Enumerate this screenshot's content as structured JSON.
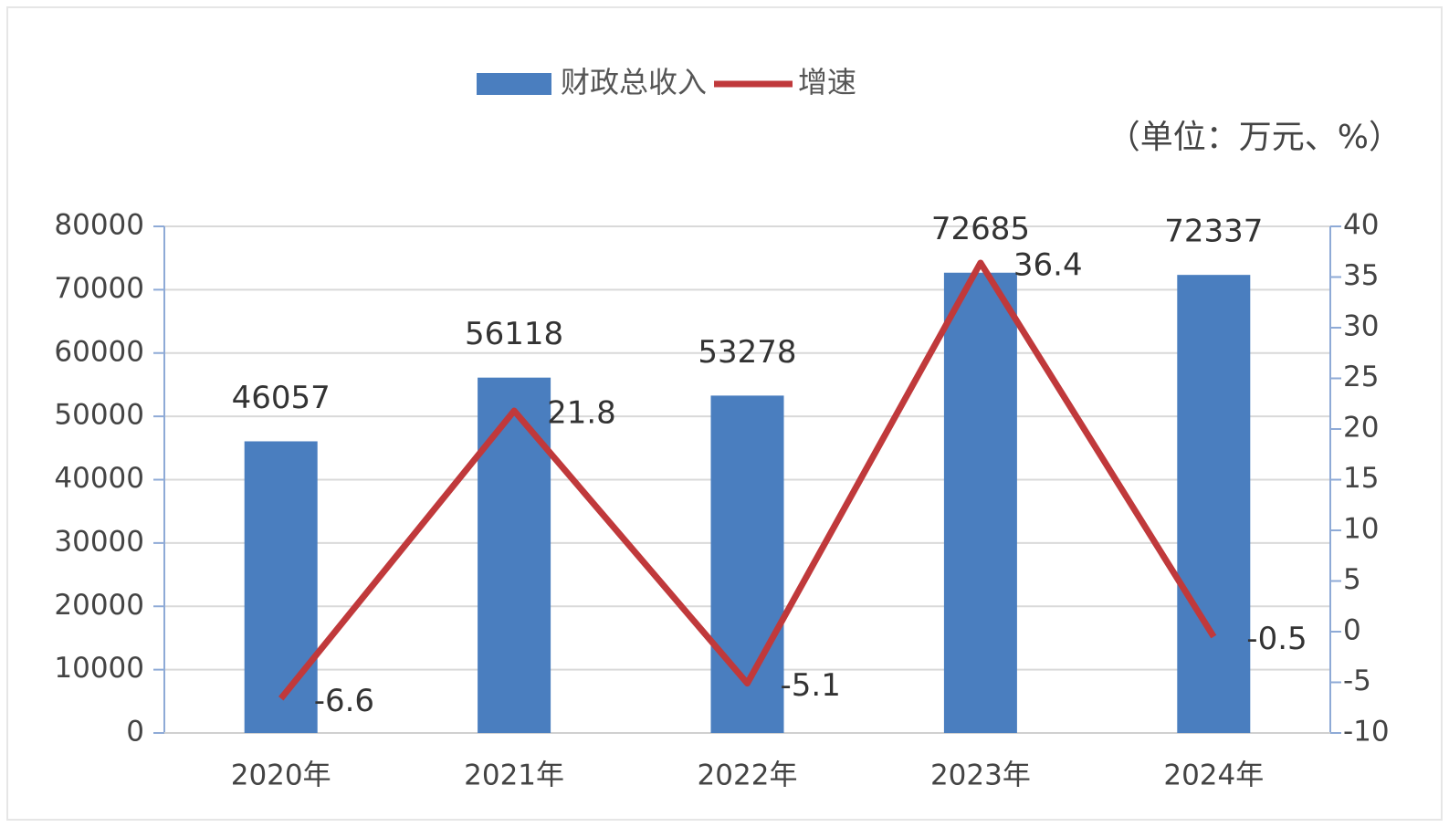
{
  "chart_data": {
    "type": "bar",
    "legend_names": null,
    "unit_note": "（单位：万元、%）",
    "categories": [
      "2020年",
      "2021年",
      "2022年",
      "2023年",
      "2024年"
    ],
    "series": [
      {
        "name": "财政总收入",
        "type": "bar",
        "color": "#4a7ebf",
        "values": [
          46057,
          56118,
          53278,
          72685,
          72337
        ]
      },
      {
        "name": "增速",
        "type": "line",
        "axis": "y2",
        "color": "#c0393b",
        "values": [
          -6.6,
          21.8,
          -5.1,
          36.4,
          -0.5
        ]
      }
    ],
    "ylim": [
      0,
      80000
    ],
    "yticks": [
      0,
      10000,
      20000,
      30000,
      40000,
      50000,
      60000,
      70000,
      80000
    ],
    "y2lim": [
      -10,
      40
    ],
    "y2ticks": [
      -10,
      -5,
      0,
      5,
      10,
      15,
      20,
      25,
      30,
      35,
      40
    ],
    "grid": true,
    "legend": "top"
  }
}
